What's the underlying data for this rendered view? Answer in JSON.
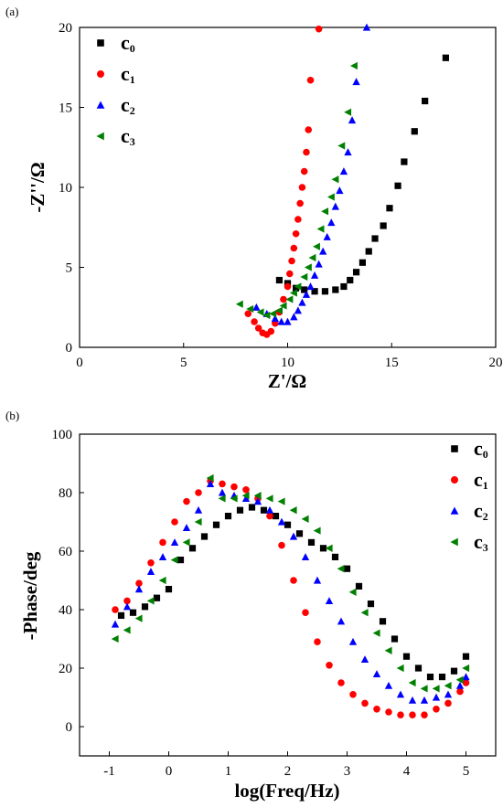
{
  "chart_data": [
    {
      "type": "scatter",
      "panel_label": "(a)",
      "xlabel": "Z'/Ω",
      "ylabel": "-Z''/Ω",
      "xlim": [
        0,
        20
      ],
      "ylim": [
        0,
        20
      ],
      "xticks": [
        0,
        5,
        10,
        15,
        20
      ],
      "yticks": [
        0,
        5,
        10,
        15,
        20
      ],
      "xtick_labels": [
        "0",
        "5",
        "10",
        "15",
        "20"
      ],
      "ytick_labels": [
        "0",
        "5",
        "10",
        "15",
        "20"
      ],
      "legend_position": "top-left",
      "series": [
        {
          "name": "c0",
          "label_main": "c",
          "label_sub": "0",
          "color": "#000000",
          "marker": "square",
          "points": [
            [
              9.6,
              4.2
            ],
            [
              10.0,
              4.0
            ],
            [
              10.4,
              3.7
            ],
            [
              10.8,
              3.6
            ],
            [
              11.3,
              3.5
            ],
            [
              11.8,
              3.5
            ],
            [
              12.3,
              3.6
            ],
            [
              12.7,
              3.8
            ],
            [
              13.0,
              4.2
            ],
            [
              13.3,
              4.7
            ],
            [
              13.6,
              5.3
            ],
            [
              13.9,
              6.0
            ],
            [
              14.2,
              6.8
            ],
            [
              14.6,
              7.6
            ],
            [
              14.9,
              8.7
            ],
            [
              15.3,
              10.1
            ],
            [
              15.6,
              11.6
            ],
            [
              16.1,
              13.5
            ],
            [
              16.6,
              15.4
            ],
            [
              17.6,
              18.1
            ]
          ]
        },
        {
          "name": "c1",
          "label_main": "c",
          "label_sub": "1",
          "color": "#ff0000",
          "marker": "circle",
          "points": [
            [
              8.1,
              2.1
            ],
            [
              8.4,
              1.6
            ],
            [
              8.6,
              1.2
            ],
            [
              8.8,
              0.9
            ],
            [
              9.0,
              0.8
            ],
            [
              9.2,
              1.0
            ],
            [
              9.4,
              1.5
            ],
            [
              9.6,
              2.2
            ],
            [
              9.8,
              3.0
            ],
            [
              10.0,
              3.8
            ],
            [
              10.1,
              4.6
            ],
            [
              10.2,
              5.4
            ],
            [
              10.3,
              6.2
            ],
            [
              10.4,
              7.1
            ],
            [
              10.5,
              8.0
            ],
            [
              10.6,
              9.0
            ],
            [
              10.7,
              10.0
            ],
            [
              10.8,
              11.0
            ],
            [
              10.9,
              12.2
            ],
            [
              11.0,
              13.6
            ],
            [
              11.1,
              16.7
            ],
            [
              11.5,
              19.9
            ]
          ]
        },
        {
          "name": "c2",
          "label_main": "c",
          "label_sub": "2",
          "color": "#0000ff",
          "marker": "triangle-up",
          "points": [
            [
              8.5,
              2.5
            ],
            [
              9.0,
              2.1
            ],
            [
              9.4,
              1.8
            ],
            [
              9.7,
              1.6
            ],
            [
              10.0,
              1.6
            ],
            [
              10.3,
              1.9
            ],
            [
              10.5,
              2.3
            ],
            [
              10.7,
              2.8
            ],
            [
              10.9,
              3.3
            ],
            [
              11.1,
              3.8
            ],
            [
              11.3,
              4.5
            ],
            [
              11.5,
              5.2
            ],
            [
              11.7,
              6.0
            ],
            [
              11.9,
              6.9
            ],
            [
              12.1,
              7.8
            ],
            [
              12.3,
              8.8
            ],
            [
              12.5,
              9.8
            ],
            [
              12.7,
              11.0
            ],
            [
              12.9,
              12.2
            ],
            [
              13.1,
              14.2
            ],
            [
              13.3,
              16.6
            ],
            [
              13.8,
              20.0
            ]
          ]
        },
        {
          "name": "c3",
          "label_main": "c",
          "label_sub": "3",
          "color": "#008000",
          "marker": "triangle-left",
          "points": [
            [
              7.7,
              2.7
            ],
            [
              8.2,
              2.4
            ],
            [
              8.7,
              2.2
            ],
            [
              9.0,
              2.0
            ],
            [
              9.3,
              2.1
            ],
            [
              9.6,
              2.3
            ],
            [
              9.8,
              2.6
            ],
            [
              10.1,
              3.0
            ],
            [
              10.3,
              3.4
            ],
            [
              10.5,
              3.8
            ],
            [
              10.8,
              4.4
            ],
            [
              11.0,
              5.0
            ],
            [
              11.2,
              5.6
            ],
            [
              11.4,
              6.3
            ],
            [
              11.6,
              7.4
            ],
            [
              11.8,
              8.5
            ],
            [
              12.1,
              9.4
            ],
            [
              12.3,
              10.5
            ],
            [
              12.6,
              12.6
            ],
            [
              12.9,
              14.7
            ],
            [
              13.2,
              17.6
            ]
          ]
        }
      ]
    },
    {
      "type": "scatter",
      "panel_label": "(b)",
      "xlabel": "log(Freq/Hz)",
      "ylabel": "-Phase/deg",
      "xlim": [
        -1.5,
        5.5
      ],
      "ylim": [
        -10,
        100
      ],
      "xticks": [
        -1,
        0,
        1,
        2,
        3,
        4,
        5
      ],
      "yticks": [
        0,
        20,
        40,
        60,
        80,
        100
      ],
      "xtick_labels": [
        "-1",
        "0",
        "1",
        "2",
        "3",
        "4",
        "5"
      ],
      "ytick_labels": [
        "0",
        "20",
        "40",
        "60",
        "80",
        "100"
      ],
      "legend_position": "top-right",
      "series": [
        {
          "name": "c0",
          "label_main": "c",
          "label_sub": "0",
          "color": "#000000",
          "marker": "square",
          "points": [
            [
              -0.8,
              38
            ],
            [
              -0.6,
              39
            ],
            [
              -0.4,
              41
            ],
            [
              -0.2,
              44
            ],
            [
              0.0,
              47
            ],
            [
              0.2,
              57
            ],
            [
              0.4,
              61
            ],
            [
              0.6,
              65
            ],
            [
              0.8,
              69
            ],
            [
              1.0,
              72
            ],
            [
              1.2,
              74
            ],
            [
              1.4,
              75
            ],
            [
              1.6,
              74
            ],
            [
              1.8,
              72
            ],
            [
              2.0,
              69
            ],
            [
              2.2,
              66
            ],
            [
              2.4,
              63
            ],
            [
              2.6,
              61
            ],
            [
              2.8,
              58
            ],
            [
              3.0,
              54
            ],
            [
              3.2,
              48
            ],
            [
              3.4,
              42
            ],
            [
              3.6,
              36
            ],
            [
              3.8,
              30
            ],
            [
              4.0,
              24
            ],
            [
              4.2,
              20
            ],
            [
              4.4,
              17
            ],
            [
              4.6,
              17
            ],
            [
              4.8,
              19
            ],
            [
              5.0,
              24
            ]
          ]
        },
        {
          "name": "c1",
          "label_main": "c",
          "label_sub": "1",
          "color": "#ff0000",
          "marker": "circle",
          "points": [
            [
              -0.9,
              40
            ],
            [
              -0.7,
              43
            ],
            [
              -0.5,
              49
            ],
            [
              -0.3,
              56
            ],
            [
              -0.1,
              63
            ],
            [
              0.1,
              70
            ],
            [
              0.3,
              77
            ],
            [
              0.5,
              80
            ],
            [
              0.7,
              84
            ],
            [
              0.9,
              83
            ],
            [
              1.1,
              82
            ],
            [
              1.3,
              81
            ],
            [
              1.5,
              78
            ],
            [
              1.7,
              72
            ],
            [
              1.9,
              62
            ],
            [
              2.1,
              50
            ],
            [
              2.3,
              39
            ],
            [
              2.5,
              29
            ],
            [
              2.7,
              21
            ],
            [
              2.9,
              15
            ],
            [
              3.1,
              11
            ],
            [
              3.3,
              8
            ],
            [
              3.5,
              6
            ],
            [
              3.7,
              5
            ],
            [
              3.9,
              4
            ],
            [
              4.1,
              4
            ],
            [
              4.3,
              4
            ],
            [
              4.5,
              6
            ],
            [
              4.7,
              8
            ],
            [
              4.9,
              12
            ],
            [
              5.0,
              15
            ]
          ]
        },
        {
          "name": "c2",
          "label_main": "c",
          "label_sub": "2",
          "color": "#0000ff",
          "marker": "triangle-up",
          "points": [
            [
              -0.9,
              35
            ],
            [
              -0.7,
              41
            ],
            [
              -0.5,
              47
            ],
            [
              -0.3,
              53
            ],
            [
              -0.1,
              58
            ],
            [
              0.1,
              63
            ],
            [
              0.3,
              68
            ],
            [
              0.5,
              74
            ],
            [
              0.7,
              83
            ],
            [
              0.9,
              80
            ],
            [
              1.1,
              79
            ],
            [
              1.3,
              78
            ],
            [
              1.5,
              77
            ],
            [
              1.7,
              74
            ],
            [
              1.9,
              70
            ],
            [
              2.1,
              65
            ],
            [
              2.3,
              58
            ],
            [
              2.5,
              50
            ],
            [
              2.7,
              43
            ],
            [
              2.9,
              36
            ],
            [
              3.1,
              29
            ],
            [
              3.3,
              23
            ],
            [
              3.5,
              18
            ],
            [
              3.7,
              14
            ],
            [
              3.9,
              11
            ],
            [
              4.1,
              9
            ],
            [
              4.3,
              9
            ],
            [
              4.5,
              10
            ],
            [
              4.7,
              11
            ],
            [
              4.9,
              14
            ],
            [
              5.0,
              17
            ]
          ]
        },
        {
          "name": "c3",
          "label_main": "c",
          "label_sub": "3",
          "color": "#008000",
          "marker": "triangle-left",
          "points": [
            [
              -0.9,
              30
            ],
            [
              -0.7,
              33
            ],
            [
              -0.5,
              37
            ],
            [
              -0.3,
              43
            ],
            [
              -0.1,
              50
            ],
            [
              0.1,
              57
            ],
            [
              0.3,
              63
            ],
            [
              0.5,
              70
            ],
            [
              0.7,
              85
            ],
            [
              0.9,
              78
            ],
            [
              1.1,
              78
            ],
            [
              1.3,
              79
            ],
            [
              1.5,
              79
            ],
            [
              1.7,
              78
            ],
            [
              1.9,
              77
            ],
            [
              2.1,
              74
            ],
            [
              2.3,
              71
            ],
            [
              2.5,
              67
            ],
            [
              2.7,
              61
            ],
            [
              2.9,
              54
            ],
            [
              3.1,
              46
            ],
            [
              3.3,
              39
            ],
            [
              3.5,
              32
            ],
            [
              3.7,
              26
            ],
            [
              3.9,
              20
            ],
            [
              4.1,
              15
            ],
            [
              4.3,
              13
            ],
            [
              4.5,
              13
            ],
            [
              4.7,
              14
            ],
            [
              4.9,
              16
            ],
            [
              5.0,
              20
            ]
          ]
        }
      ]
    }
  ]
}
